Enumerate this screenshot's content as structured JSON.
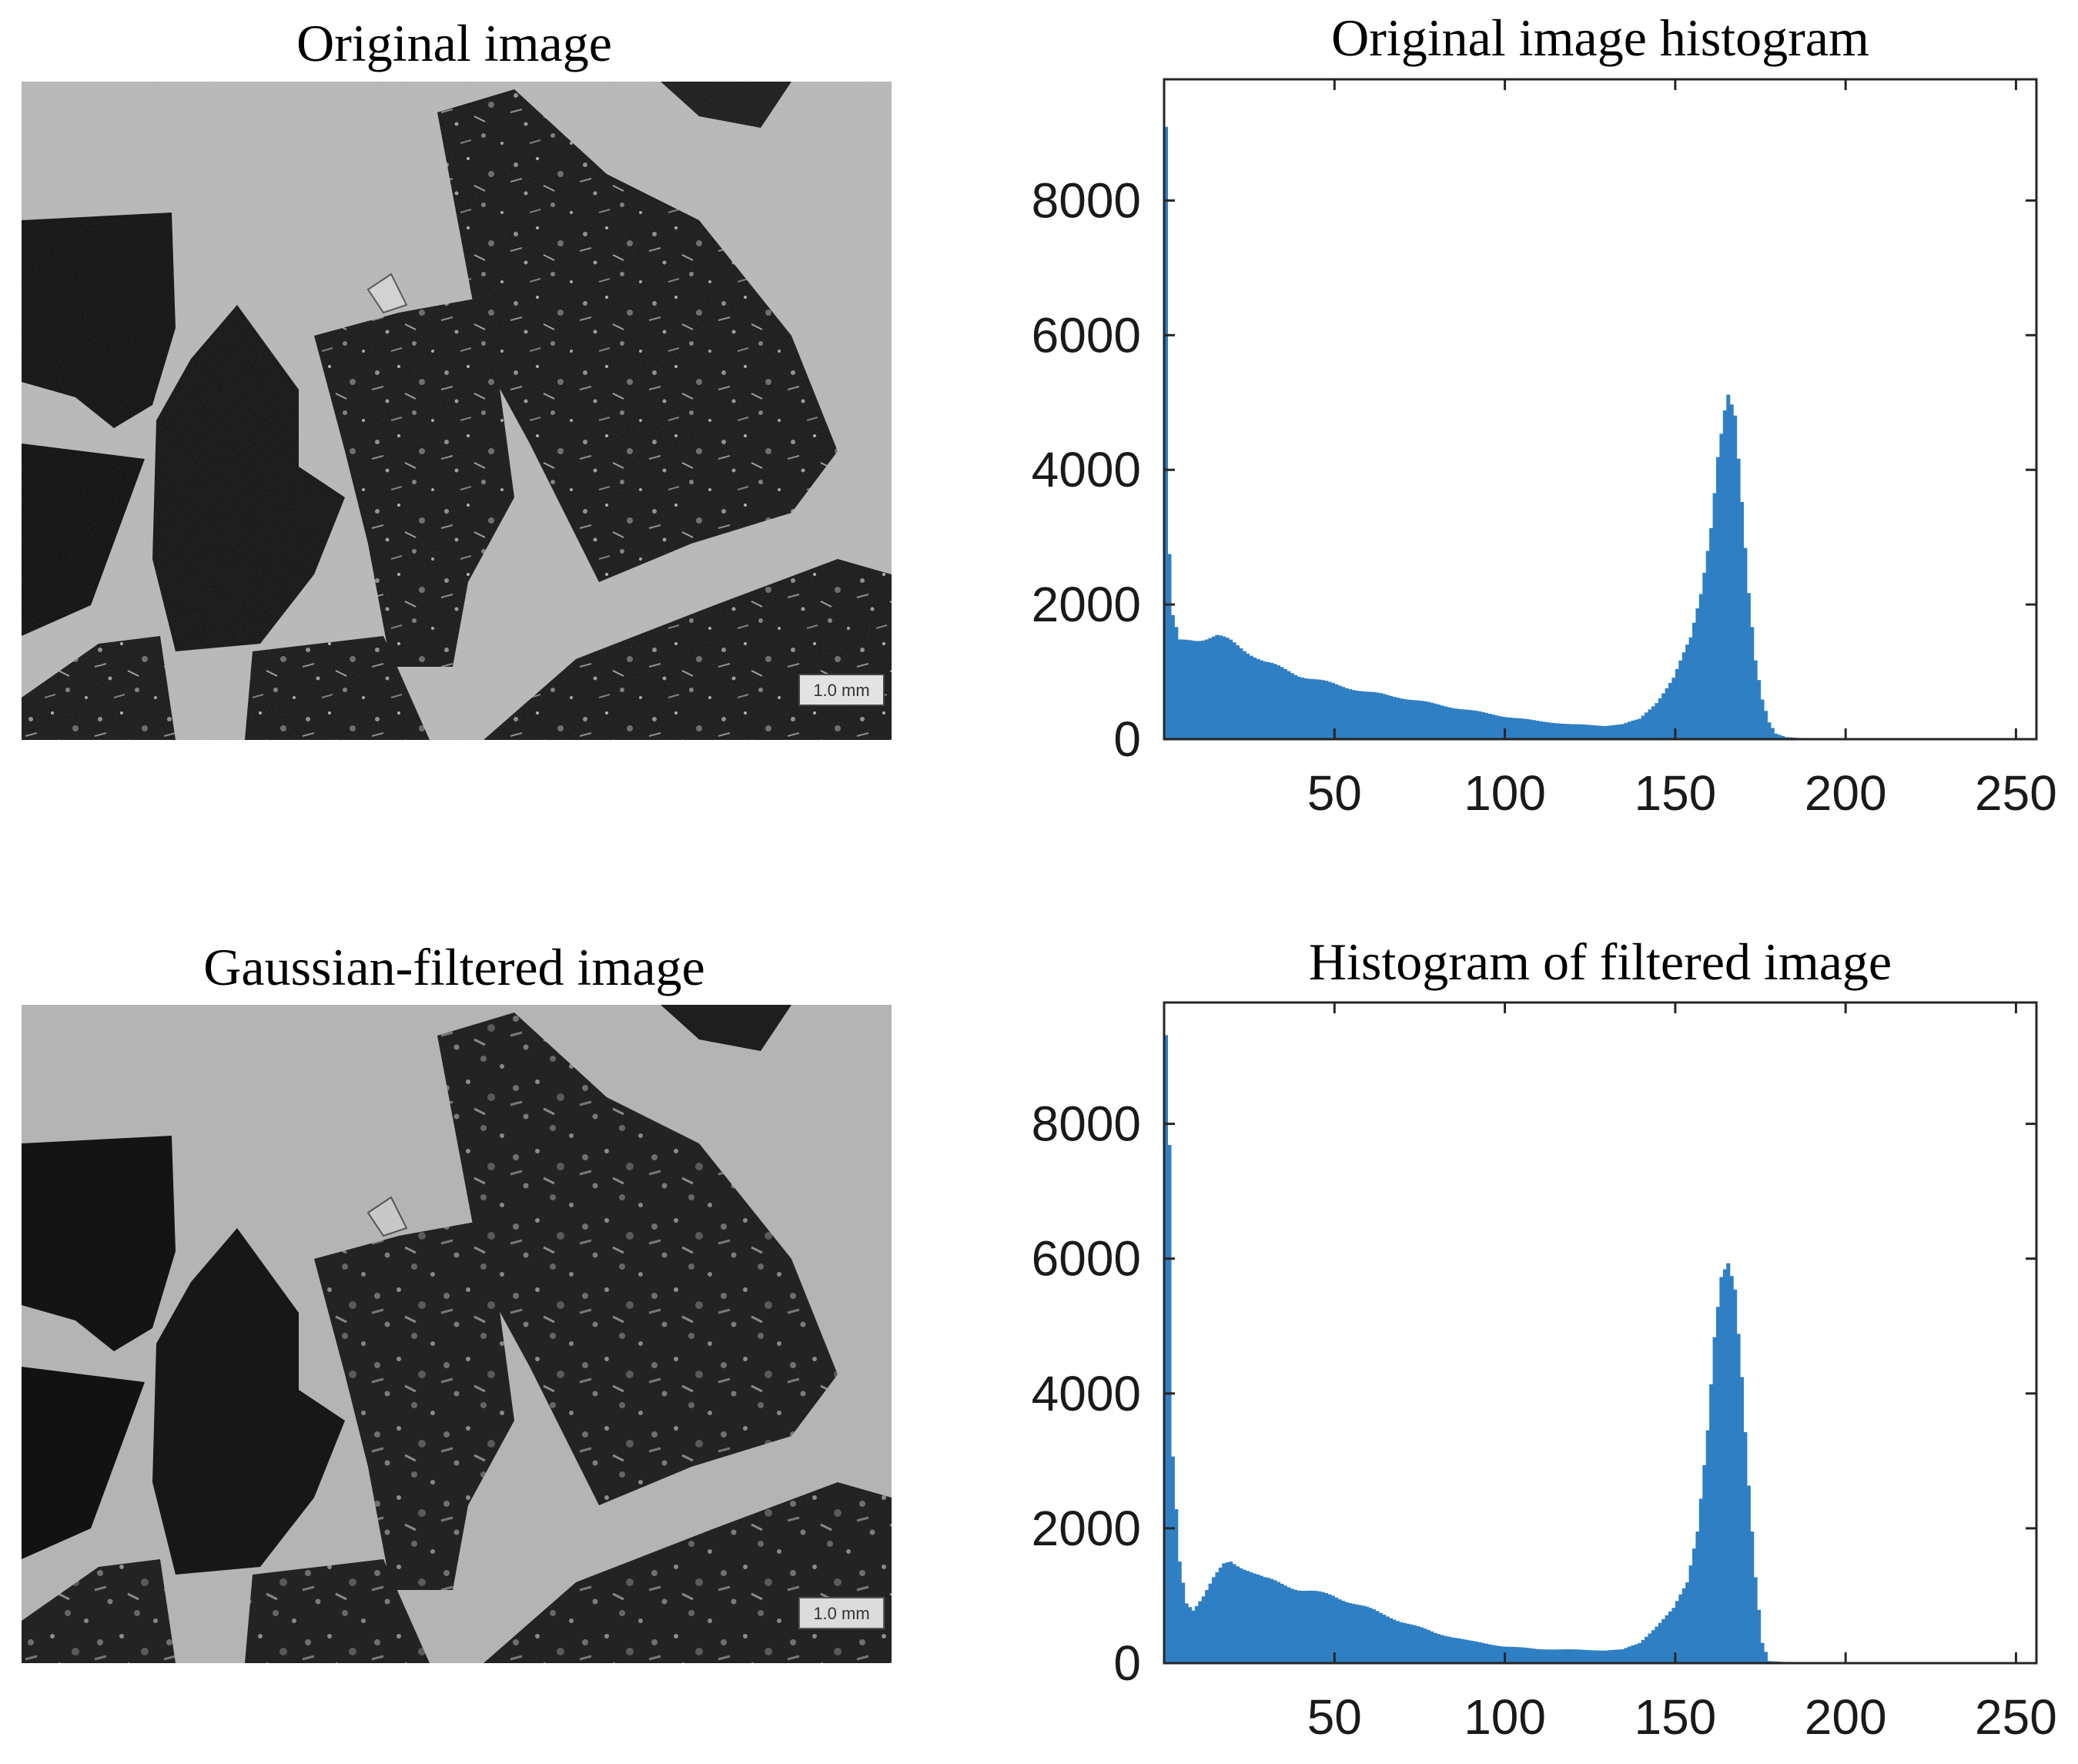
{
  "panels": {
    "original_image": {
      "title": "Original image",
      "scale_bar": "1.0 mm"
    },
    "filtered_image": {
      "title": "Gaussian-filtered image",
      "scale_bar": "1.0 mm"
    }
  },
  "colors": {
    "bar": "#2f7fc4",
    "photo_background": "#b4b4b4",
    "particle": "#161616"
  },
  "chart_data": [
    {
      "type": "bar",
      "title": "Original image histogram",
      "xlabel": "",
      "ylabel": "",
      "xlim": [
        0,
        256
      ],
      "ylim": [
        0,
        9800
      ],
      "x_ticks": [
        50,
        100,
        150,
        200,
        250
      ],
      "y_ticks": [
        0,
        2000,
        4000,
        6000,
        8000
      ],
      "grid": false,
      "legend": "none",
      "profile_points": [
        [
          1,
          9000
        ],
        [
          2,
          2700
        ],
        [
          3,
          1800
        ],
        [
          5,
          1450
        ],
        [
          8,
          1480
        ],
        [
          12,
          1500
        ],
        [
          16,
          1530
        ],
        [
          20,
          1450
        ],
        [
          25,
          1300
        ],
        [
          30,
          1150
        ],
        [
          40,
          950
        ],
        [
          50,
          820
        ],
        [
          60,
          700
        ],
        [
          70,
          620
        ],
        [
          80,
          520
        ],
        [
          90,
          430
        ],
        [
          100,
          340
        ],
        [
          110,
          270
        ],
        [
          120,
          220
        ],
        [
          130,
          200
        ],
        [
          135,
          220
        ],
        [
          140,
          300
        ],
        [
          145,
          550
        ],
        [
          150,
          900
        ],
        [
          155,
          1500
        ],
        [
          158,
          2200
        ],
        [
          161,
          3200
        ],
        [
          163,
          4200
        ],
        [
          165,
          4800
        ],
        [
          166,
          5000
        ],
        [
          168,
          4700
        ],
        [
          170,
          3500
        ],
        [
          172,
          2200
        ],
        [
          174,
          1200
        ],
        [
          176,
          600
        ],
        [
          178,
          250
        ],
        [
          180,
          80
        ],
        [
          183,
          30
        ],
        [
          190,
          10
        ],
        [
          256,
          0
        ]
      ]
    },
    {
      "type": "bar",
      "title": "Histogram of filtered image",
      "xlabel": "",
      "ylabel": "",
      "xlim": [
        0,
        256
      ],
      "ylim": [
        0,
        9800
      ],
      "x_ticks": [
        50,
        100,
        150,
        200,
        250
      ],
      "y_ticks": [
        0,
        2000,
        4000,
        6000,
        8000
      ],
      "grid": false,
      "legend": "none",
      "profile_points": [
        [
          1,
          9100
        ],
        [
          2,
          7500
        ],
        [
          3,
          3000
        ],
        [
          5,
          1500
        ],
        [
          7,
          900
        ],
        [
          9,
          800
        ],
        [
          12,
          1000
        ],
        [
          15,
          1250
        ],
        [
          18,
          1450
        ],
        [
          20,
          1500
        ],
        [
          25,
          1400
        ],
        [
          30,
          1250
        ],
        [
          40,
          1100
        ],
        [
          50,
          1000
        ],
        [
          60,
          820
        ],
        [
          70,
          620
        ],
        [
          80,
          450
        ],
        [
          90,
          330
        ],
        [
          100,
          250
        ],
        [
          110,
          210
        ],
        [
          120,
          200
        ],
        [
          130,
          190
        ],
        [
          135,
          200
        ],
        [
          140,
          300
        ],
        [
          145,
          550
        ],
        [
          150,
          800
        ],
        [
          154,
          1200
        ],
        [
          157,
          2000
        ],
        [
          160,
          3500
        ],
        [
          162,
          4800
        ],
        [
          164,
          5600
        ],
        [
          166,
          5800
        ],
        [
          168,
          5500
        ],
        [
          170,
          4300
        ],
        [
          172,
          2700
        ],
        [
          174,
          1300
        ],
        [
          176,
          300
        ],
        [
          178,
          30
        ],
        [
          185,
          10
        ],
        [
          256,
          0
        ]
      ]
    }
  ]
}
